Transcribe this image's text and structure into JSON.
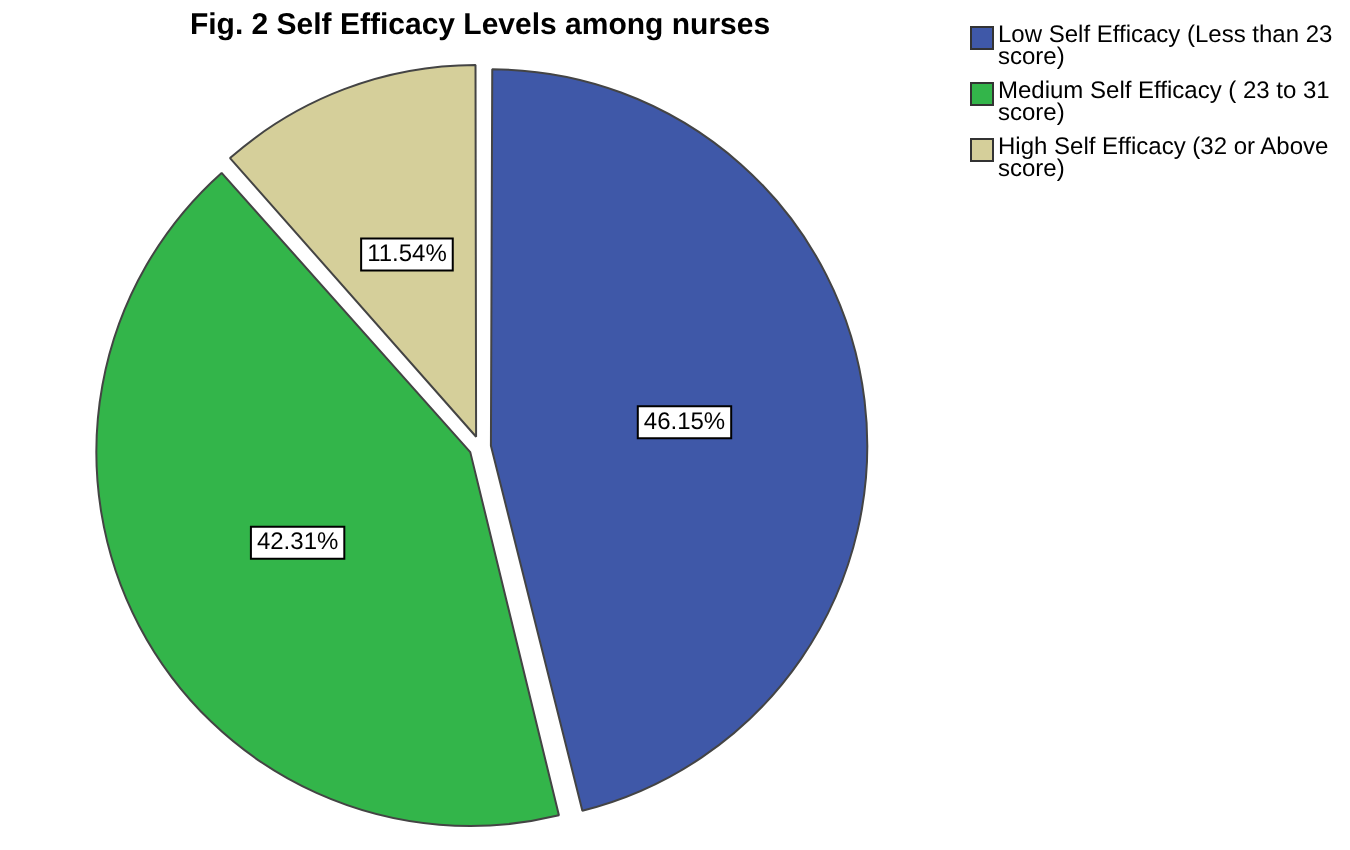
{
  "chart_data": {
    "type": "pie",
    "title": "Fig. 2 Self Efficacy Levels among nurses",
    "categories": [
      "Low Self Efficacy (Less than 23 score)",
      "Medium Self Efficacy ( 23 to 31 score)",
      "High Self Efficacy (32 or Above score)"
    ],
    "values": [
      46.15,
      42.31,
      11.54
    ],
    "colors": [
      "#3f58a8",
      "#33b54a",
      "#d5cf9a"
    ],
    "value_labels": [
      "46.15%",
      "42.31%",
      "11.54%"
    ],
    "legend": "top right"
  }
}
